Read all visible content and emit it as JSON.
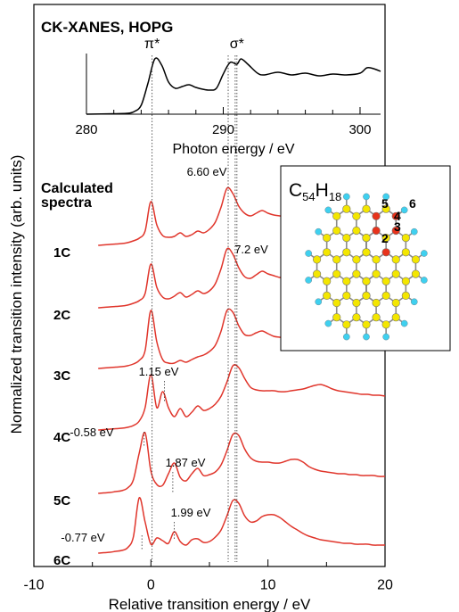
{
  "chart_data": [
    {
      "type": "line",
      "title": "CK-XANES, HOPG",
      "xlabel": "Photon energy / eV",
      "x": [
        280,
        282,
        283,
        283.5,
        284,
        284.5,
        285,
        285.5,
        286,
        286.5,
        287,
        287.5,
        288,
        288.5,
        289,
        289.5,
        290,
        290.5,
        291,
        291.3,
        291.8,
        292.5,
        293,
        294,
        295,
        296,
        297,
        298,
        299,
        300,
        300.5,
        301,
        301.5
      ],
      "series": [
        {
          "color": "#000000",
          "values": [
            0,
            0.05,
            0.1,
            0.3,
            1.0,
            3.5,
            6.2,
            5.5,
            3.6,
            2.9,
            3.1,
            3.3,
            3.0,
            2.8,
            2.7,
            2.9,
            4.5,
            5.8,
            5.6,
            6.2,
            5.6,
            4.6,
            4.4,
            4.7,
            4.4,
            4.6,
            4.3,
            4.5,
            4.4,
            4.6,
            5.2,
            5.1,
            4.8
          ]
        }
      ],
      "xlim": [
        280,
        301.5
      ],
      "xticks": [
        280,
        290,
        300
      ],
      "minor_xticks": [
        282,
        284,
        286,
        288,
        292,
        294,
        296,
        298,
        300
      ],
      "annotations": [
        {
          "text": "π*",
          "x": 284.8
        },
        {
          "text": "σ*",
          "x": 291
        }
      ]
    },
    {
      "type": "line",
      "xlabel": "Relative transition energy / eV",
      "ylabel": "Normalized transition intensity (arb. units)",
      "heading": [
        "Calculated",
        "spectra"
      ],
      "x": [
        -4.5,
        -4,
        -3.5,
        -3,
        -2.5,
        -2,
        -1.5,
        -1,
        -0.5,
        0,
        0.5,
        1,
        1.5,
        2,
        2.5,
        3,
        3.5,
        4,
        4.5,
        5,
        5.5,
        6,
        6.5,
        7,
        7.5,
        8,
        8.5,
        9,
        9.5,
        10,
        10.5,
        11,
        11.5,
        12,
        12.5,
        13,
        13.5,
        14,
        14.5,
        15,
        15.5,
        16,
        16.5,
        17,
        17.5,
        18,
        18.5,
        19,
        19.5,
        20
      ],
      "series": [
        {
          "name": "1C",
          "color": "#e0352b",
          "values": [
            0,
            0.05,
            0.1,
            0.15,
            0.2,
            0.3,
            0.5,
            0.8,
            1.6,
            4.9,
            2.3,
            1.1,
            0.9,
            1.0,
            1.4,
            1.0,
            1.2,
            1.6,
            1.4,
            1.8,
            2.6,
            4.3,
            6.4,
            5.8,
            4.4,
            3.6,
            3.3,
            3.6,
            3.9,
            3.6,
            3.4,
            3.3,
            3.2,
            3.2,
            3.1,
            3.1,
            3.0,
            3.0,
            3.0,
            2.9,
            2.9,
            2.9,
            2.8,
            2.8,
            2.8,
            2.7,
            2.7,
            2.7,
            2.6,
            2.6
          ]
        },
        {
          "name": "2C",
          "color": "#e0352b",
          "values": [
            0,
            0.05,
            0.1,
            0.15,
            0.2,
            0.3,
            0.5,
            0.8,
            1.6,
            4.9,
            2.3,
            1.2,
            1.0,
            1.3,
            1.7,
            1.2,
            1.5,
            1.9,
            1.6,
            1.9,
            2.7,
            4.4,
            6.6,
            6.0,
            4.5,
            3.5,
            3.3,
            3.7,
            4.1,
            3.8,
            3.6,
            3.4,
            3.3,
            3.2,
            3.2,
            3.1,
            3.1,
            3.0,
            3.0,
            3.0,
            2.9,
            2.9,
            2.9,
            2.8,
            2.8,
            2.8,
            2.7,
            2.7,
            2.7,
            2.6
          ]
        },
        {
          "name": "3C",
          "color": "#e0352b",
          "values": [
            0,
            0.05,
            0.1,
            0.15,
            0.2,
            0.3,
            0.5,
            0.9,
            2.0,
            6.5,
            3.0,
            1.0,
            0.6,
            0.6,
            0.9,
            0.7,
            1.0,
            1.3,
            1.5,
            1.9,
            2.6,
            4.2,
            6.5,
            6.3,
            4.8,
            3.8,
            3.7,
            4.0,
            4.2,
            3.9,
            3.6,
            3.5,
            3.4,
            3.3,
            3.3,
            3.2,
            3.2,
            3.1,
            3.1,
            3.0,
            3.0,
            3.0,
            2.9,
            2.9,
            2.9,
            2.8,
            2.8,
            2.8,
            2.7,
            2.7
          ]
        },
        {
          "name": "4C",
          "color": "#e0352b",
          "values": [
            0,
            0.05,
            0.1,
            0.15,
            0.2,
            0.3,
            0.5,
            1.0,
            2.5,
            6.2,
            2.5,
            4.3,
            2.5,
            1.5,
            2.4,
            1.5,
            2.0,
            2.7,
            2.2,
            2.4,
            2.9,
            3.8,
            5.4,
            7.2,
            7.0,
            5.8,
            4.8,
            4.5,
            4.4,
            4.4,
            4.4,
            4.3,
            4.3,
            4.4,
            4.5,
            4.6,
            4.8,
            5.0,
            5.1,
            4.9,
            4.6,
            4.4,
            4.3,
            4.2,
            4.1,
            4.0,
            4.0,
            3.9,
            3.9,
            3.8
          ]
        },
        {
          "name": "5C",
          "color": "#e0352b",
          "values": [
            0,
            0.05,
            0.1,
            0.2,
            0.3,
            0.6,
            1.5,
            4.5,
            6.8,
            2.5,
            1.0,
            0.9,
            2.2,
            3.4,
            1.8,
            1.4,
            2.2,
            2.8,
            2.0,
            2.1,
            2.4,
            3.2,
            4.8,
            6.6,
            6.5,
            5.0,
            4.0,
            3.6,
            3.5,
            3.5,
            3.4,
            3.4,
            3.6,
            3.8,
            3.8,
            3.5,
            3.0,
            2.7,
            2.5,
            2.4,
            2.3,
            2.2,
            2.2,
            2.1,
            2.1,
            2.0,
            2.0,
            2.0,
            1.9,
            1.9
          ]
        },
        {
          "name": "6C",
          "color": "#e0352b",
          "values": [
            0,
            0.05,
            0.1,
            0.2,
            0.3,
            0.6,
            1.8,
            6.2,
            3.5,
            1.0,
            1.7,
            1.4,
            1.1,
            2.4,
            1.3,
            0.9,
            1.5,
            1.6,
            1.2,
            1.3,
            1.8,
            2.6,
            4.2,
            5.9,
            5.6,
            4.2,
            3.5,
            3.6,
            4.1,
            4.3,
            4.3,
            4.0,
            3.5,
            3.0,
            2.6,
            2.2,
            1.9,
            1.7,
            1.5,
            1.4,
            1.3,
            1.2,
            1.1,
            1.1,
            1.0,
            1.0,
            1.0,
            0.9,
            0.9,
            0.9
          ]
        }
      ],
      "xlim": [
        -10,
        20
      ],
      "xticks": [
        -10,
        0,
        10,
        20
      ],
      "minor_xticks": [
        -5,
        5,
        15
      ],
      "annotations": [
        {
          "text": "6.60 eV",
          "x": 6.6
        },
        {
          "text": "7.2 eV",
          "x": 7.2
        },
        {
          "text": "1.15 eV",
          "x": 1.15
        },
        {
          "text": "-0.58 eV",
          "x": -0.58
        },
        {
          "text": "1.87 eV",
          "x": 1.87
        },
        {
          "text": "1.99 eV",
          "x": 1.99
        },
        {
          "text": "-0.77 eV",
          "x": -0.77
        }
      ]
    }
  ],
  "molecule": {
    "formula": [
      "C",
      "54",
      "H",
      "18"
    ],
    "site_labels": [
      "2",
      "3",
      "4",
      "5",
      "6"
    ]
  }
}
